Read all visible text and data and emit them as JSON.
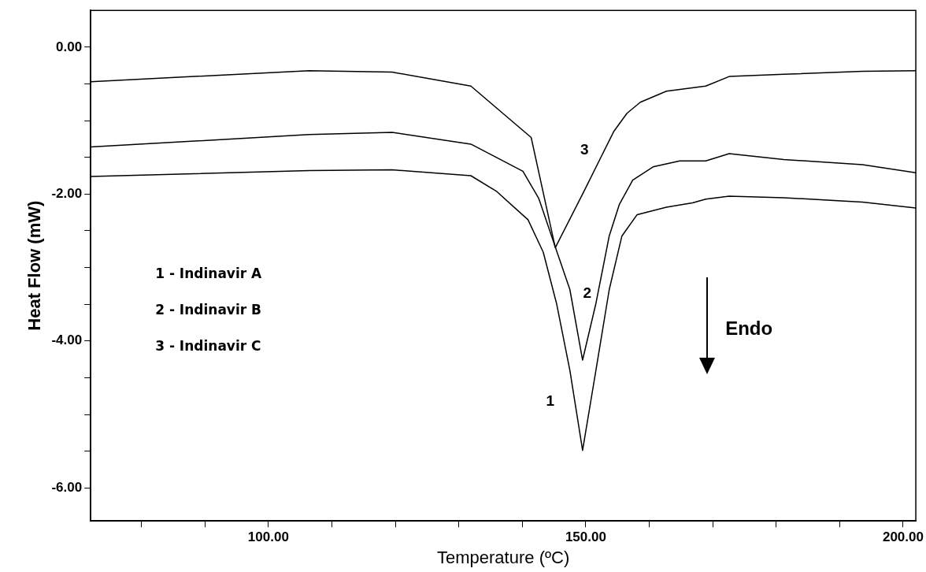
{
  "chart_data": {
    "type": "line",
    "xlabel": "Temperature (ºC)",
    "ylabel": "Heat Flow (mW)",
    "xlim": [
      72,
      202
    ],
    "ylim": [
      -6.45,
      0.5
    ],
    "xticks": [
      {
        "value": 80,
        "label": null
      },
      {
        "value": 90,
        "label": null
      },
      {
        "value": 100,
        "label": "100.00"
      },
      {
        "value": 110,
        "label": null
      },
      {
        "value": 120,
        "label": null
      },
      {
        "value": 130,
        "label": null
      },
      {
        "value": 140,
        "label": null
      },
      {
        "value": 150,
        "label": "150.00"
      },
      {
        "value": 160,
        "label": null
      },
      {
        "value": 170,
        "label": null
      },
      {
        "value": 180,
        "label": null
      },
      {
        "value": 190,
        "label": null
      },
      {
        "value": 200,
        "label": "200.00"
      }
    ],
    "yticks": [
      {
        "value": 0,
        "label": "0.00"
      },
      {
        "value": -0.5,
        "label": null
      },
      {
        "value": -1,
        "label": null
      },
      {
        "value": -1.5,
        "label": null
      },
      {
        "value": -2,
        "label": "-2.00"
      },
      {
        "value": -2.5,
        "label": null
      },
      {
        "value": -3,
        "label": null
      },
      {
        "value": -3.5,
        "label": null
      },
      {
        "value": -4,
        "label": "-4.00"
      },
      {
        "value": -4.5,
        "label": null
      },
      {
        "value": -5,
        "label": null
      },
      {
        "value": -5.5,
        "label": null
      },
      {
        "value": -6,
        "label": "-6.00"
      }
    ],
    "grid": false,
    "legend": false,
    "marker": "none",
    "line_style": "solid",
    "series": [
      {
        "name": "1",
        "color": "#000000",
        "x": [
          72,
          106.4,
          119.5,
          131.9,
          135.9,
          140.9,
          143.3,
          145.4,
          147.5,
          149.5,
          151.6,
          153.7,
          155.7,
          158.1,
          162.7,
          166.8,
          168.9,
          172.6,
          181.2,
          193.6,
          202
        ],
        "values": [
          -1.76,
          -1.68,
          -1.67,
          -1.75,
          -1.96,
          -2.35,
          -2.79,
          -3.49,
          -4.4,
          -5.49,
          -4.4,
          -3.3,
          -2.57,
          -2.28,
          -2.18,
          -2.12,
          -2.07,
          -2.03,
          -2.05,
          -2.11,
          -2.19
        ]
      },
      {
        "name": "2",
        "color": "#000000",
        "x": [
          72,
          106.4,
          119.5,
          131.9,
          140.1,
          142.6,
          145.2,
          147.5,
          149.5,
          151.6,
          153.7,
          155.3,
          157.4,
          160.6,
          164.8,
          168.9,
          172.6,
          181.2,
          193.6,
          202
        ],
        "values": [
          -1.36,
          -1.19,
          -1.16,
          -1.32,
          -1.69,
          -2.06,
          -2.72,
          -3.3,
          -4.26,
          -3.49,
          -2.57,
          -2.14,
          -1.81,
          -1.63,
          -1.55,
          -1.55,
          -1.45,
          -1.53,
          -1.6,
          -1.71
        ]
      },
      {
        "name": "3",
        "color": "#000000",
        "x": [
          72,
          106.4,
          119.5,
          131.9,
          141.4,
          145.2,
          149.5,
          154.4,
          156.5,
          158.6,
          162.7,
          168.9,
          172.6,
          181.2,
          193.6,
          202
        ],
        "values": [
          -0.47,
          -0.32,
          -0.34,
          -0.53,
          -1.23,
          -2.73,
          -2.0,
          -1.15,
          -0.9,
          -0.75,
          -0.6,
          -0.53,
          -0.4,
          -0.37,
          -0.33,
          -0.32
        ]
      }
    ],
    "annotations": [
      "1 - Indinavir A",
      "2 - Indinavir B",
      "3 - Indinavir C",
      "Endo"
    ]
  }
}
